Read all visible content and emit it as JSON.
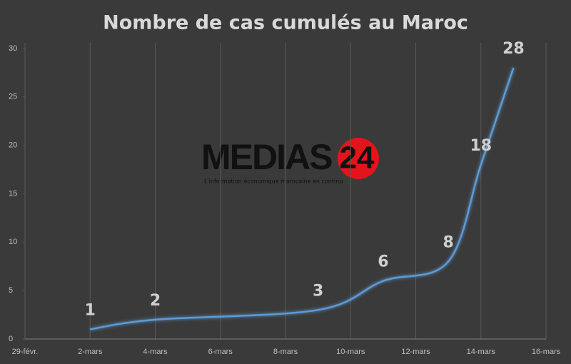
{
  "chart_data": {
    "type": "line",
    "title": "Nombre de cas cumulés au Maroc",
    "x": [
      2,
      4,
      9,
      11,
      13,
      14,
      15
    ],
    "series": [
      {
        "name": "Cas cumulés",
        "color": "#5b9bd5",
        "values": [
          1,
          2,
          3,
          6,
          8,
          18,
          28
        ]
      }
    ],
    "xlim": [
      0,
      16
    ],
    "xticks": [
      {
        "value": 0,
        "label": "29-févr."
      },
      {
        "value": 2,
        "label": "2-mars"
      },
      {
        "value": 4,
        "label": "4-mars"
      },
      {
        "value": 6,
        "label": "6-mars"
      },
      {
        "value": 8,
        "label": "8-mars"
      },
      {
        "value": 10,
        "label": "10-mars"
      },
      {
        "value": 12,
        "label": "12-mars"
      },
      {
        "value": 14,
        "label": "14-mars"
      },
      {
        "value": 16,
        "label": "16-mars"
      }
    ],
    "ylim": [
      0,
      30
    ],
    "yticks": [
      0,
      5,
      10,
      15,
      20,
      25,
      30
    ],
    "grid": true,
    "watermark": {
      "brand": "MEDIAS",
      "number": "24",
      "tagline": "L'information économique marocaine en continu"
    }
  }
}
